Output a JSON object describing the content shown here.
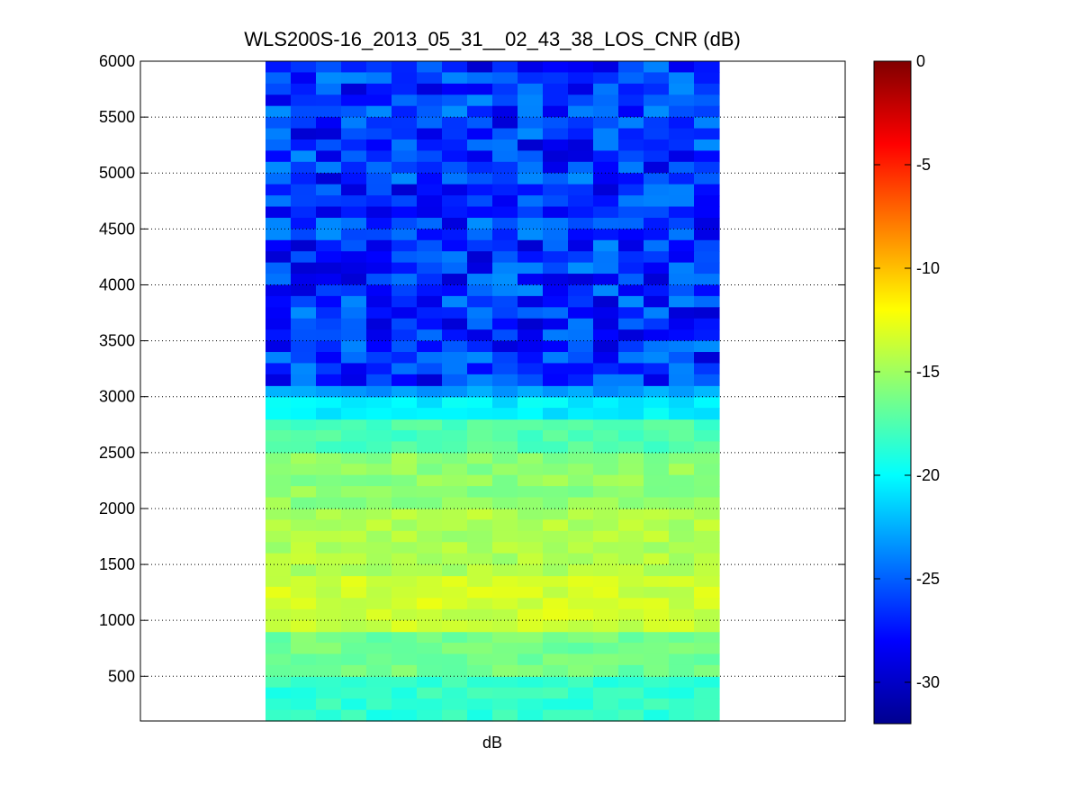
{
  "chart_data": {
    "type": "heatmap",
    "title": "WLS200S-16_2013_05_31__02_43_38_LOS_CNR (dB)",
    "xlabel": "dB",
    "ylabel": "",
    "ylim": [
      100,
      6000
    ],
    "yticks": [
      500,
      1000,
      1500,
      2000,
      2500,
      3000,
      3500,
      4000,
      4500,
      5000,
      5500,
      6000
    ],
    "colormap": "jet",
    "colorbar": {
      "clim": [
        -32,
        0
      ],
      "ticks": [
        0,
        -5,
        -10,
        -15,
        -20,
        -25,
        -30
      ],
      "tick_labels": [
        "0",
        "-5",
        "-10",
        "-15",
        "-20",
        "-25",
        "-30"
      ]
    },
    "grid": "y-dotted",
    "n_columns": 18,
    "range_gate_bands": [
      {
        "range_from": 100,
        "range_to": 500,
        "cnr_db": -18.5
      },
      {
        "range_from": 500,
        "range_to": 900,
        "cnr_db": -16.5
      },
      {
        "range_from": 900,
        "range_to": 1400,
        "cnr_db": -13.5
      },
      {
        "range_from": 1400,
        "range_to": 2000,
        "cnr_db": -14.5
      },
      {
        "range_from": 2000,
        "range_to": 2500,
        "cnr_db": -15.5
      },
      {
        "range_from": 2500,
        "range_to": 2800,
        "cnr_db": -17.5
      },
      {
        "range_from": 2800,
        "range_to": 3000,
        "cnr_db": -20.5
      },
      {
        "range_from": 3000,
        "range_to": 3100,
        "cnr_db": -23.0
      },
      {
        "range_from": 3100,
        "range_to": 6000,
        "cnr_db": -26.5
      }
    ]
  }
}
